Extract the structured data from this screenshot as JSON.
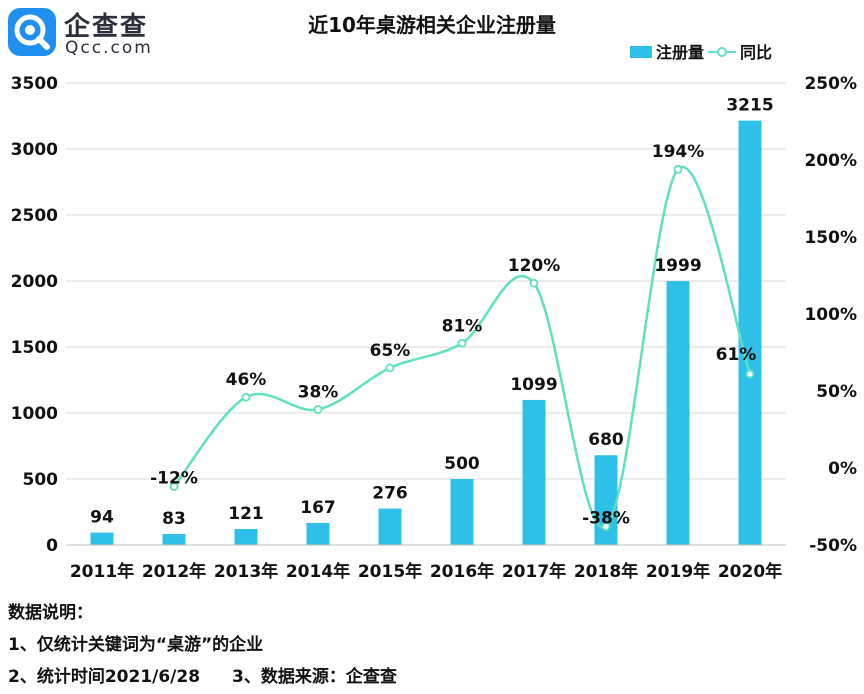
{
  "logo": {
    "icon": "qcc-logo-icon",
    "name": "企查查",
    "domain": "Qcc.com",
    "color": "#1f8ff0"
  },
  "chart_data": {
    "type": "bar+line",
    "title": "近10年桌游相关企业注册量",
    "categories": [
      "2011年",
      "2012年",
      "2013年",
      "2014年",
      "2015年",
      "2016年",
      "2017年",
      "2018年",
      "2019年",
      "2020年"
    ],
    "series": [
      {
        "name": "注册量",
        "type": "bar",
        "axis": "left",
        "color": "#2ec0e8",
        "values": [
          94,
          83,
          121,
          167,
          276,
          500,
          1099,
          680,
          1999,
          3215
        ],
        "labels": [
          "94",
          "83",
          "121",
          "167",
          "276",
          "500",
          "1099",
          "680",
          "1999",
          "3215"
        ]
      },
      {
        "name": "同比",
        "type": "line",
        "axis": "right",
        "color": "#5fe0c0",
        "values": [
          null,
          -12,
          46,
          38,
          65,
          81,
          120,
          -38,
          194,
          61
        ],
        "labels": [
          "",
          "-12%",
          "46%",
          "38%",
          "65%",
          "81%",
          "120%",
          "-38%",
          "194%",
          "61%"
        ]
      }
    ],
    "y_left": {
      "min": 0,
      "max": 3500,
      "ticks": [
        0,
        500,
        1000,
        1500,
        2000,
        2500,
        3000,
        3500
      ],
      "tick_labels": [
        "0",
        "500",
        "1000",
        "1500",
        "2000",
        "2500",
        "3000",
        "3500"
      ]
    },
    "y_right": {
      "min": -50,
      "max": 250,
      "ticks": [
        -50,
        0,
        50,
        100,
        150,
        200,
        250
      ],
      "tick_labels": [
        "-50%",
        "0%",
        "50%",
        "100%",
        "150%",
        "200%",
        "250%"
      ]
    },
    "grid": true,
    "legend_position": "top-right"
  },
  "notes": {
    "heading": "数据说明：",
    "line1": "1、仅统计关键词为“桌游”的企业",
    "line2a": "2、统计时间2021/6/28",
    "line2b": "3、数据来源：企查查"
  }
}
